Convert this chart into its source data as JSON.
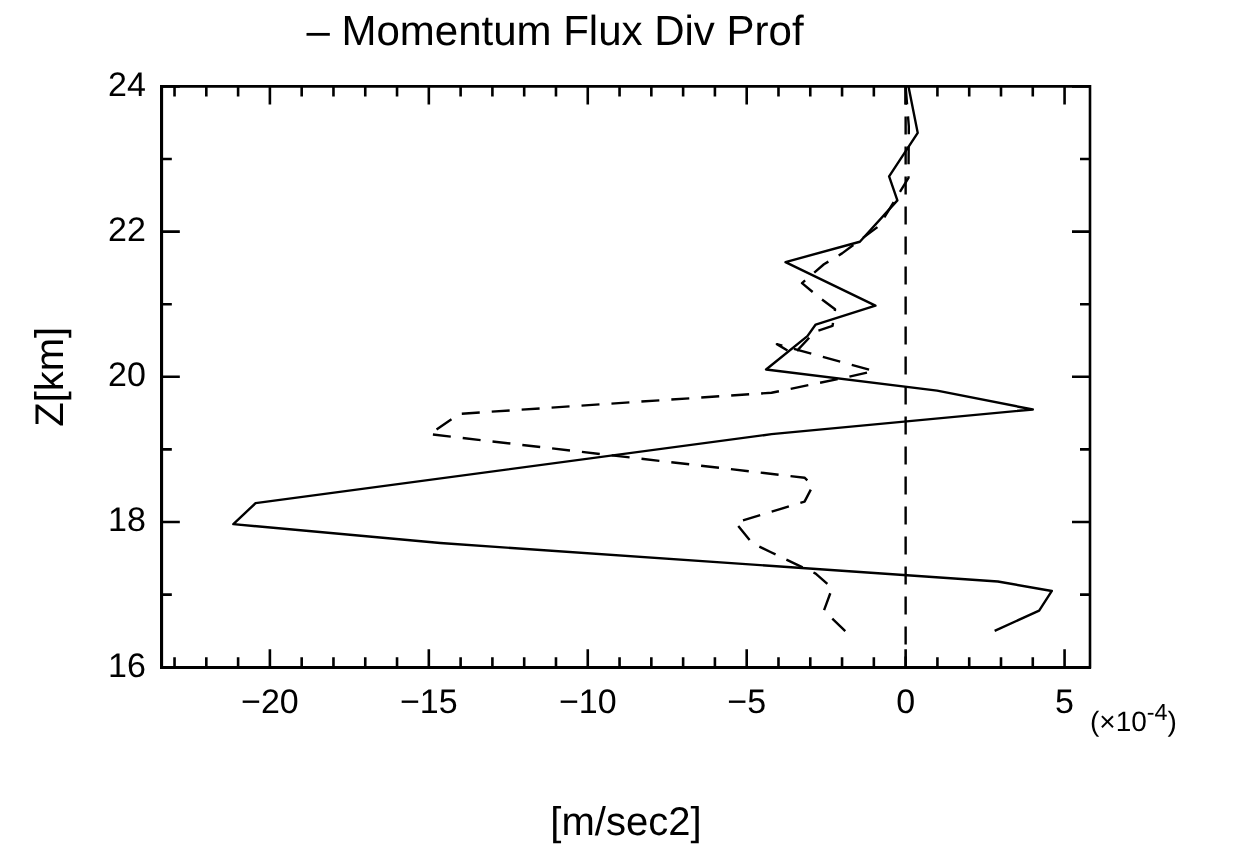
{
  "chart_data": {
    "type": "line",
    "title": "– Momentum Flux Div Prof",
    "xlabel": "[m/sec2]",
    "ylabel": "Z[km]",
    "annotations": [
      "(×10$^{-4}$)"
    ],
    "xlim": [
      -23.4,
      5.8
    ],
    "xticks": [
      -20,
      -15,
      -10,
      -5,
      0,
      5,
      {
        "value": -23,
        "label": null
      },
      {
        "value": -22,
        "label": null
      },
      {
        "value": -21,
        "label": null
      },
      {
        "value": -19,
        "label": null
      },
      {
        "value": -18,
        "label": null
      },
      {
        "value": -17,
        "label": null
      },
      {
        "value": -16,
        "label": null
      },
      {
        "value": -14,
        "label": null
      },
      {
        "value": -13,
        "label": null
      },
      {
        "value": -12,
        "label": null
      },
      {
        "value": -11,
        "label": null
      },
      {
        "value": -9,
        "label": null
      },
      {
        "value": -8,
        "label": null
      },
      {
        "value": -7,
        "label": null
      },
      {
        "value": -6,
        "label": null
      },
      {
        "value": -4,
        "label": null
      },
      {
        "value": -3,
        "label": null
      },
      {
        "value": -2,
        "label": null
      },
      {
        "value": -1,
        "label": null
      },
      {
        "value": 1,
        "label": null
      },
      {
        "value": 2,
        "label": null
      },
      {
        "value": 3,
        "label": null
      },
      {
        "value": 4,
        "label": null
      }
    ],
    "ylim": [
      16,
      24
    ],
    "yticks": [
      16,
      18,
      20,
      22,
      24,
      {
        "value": 17,
        "label": null
      },
      {
        "value": 19,
        "label": null
      },
      {
        "value": 21,
        "label": null
      },
      {
        "value": 23,
        "label": null
      }
    ],
    "grid": false,
    "legend": false,
    "marker": "none",
    "ref_lines": [
      {
        "axis": "x",
        "value": 0,
        "color": "#000000",
        "line_style": "dashed"
      }
    ],
    "series": [
      {
        "color": "#000000",
        "line_style": "solid",
        "x": [
          0.09,
          0.38,
          -0.52,
          -0.26,
          -1.44,
          -3.78,
          -0.95,
          -2.83,
          -3.09,
          -4.39,
          0.99,
          4.0,
          -4.22,
          -20.45,
          -21.15,
          -14.64,
          2.9,
          4.6,
          4.2,
          2.8
        ],
        "values": [
          24.0,
          23.36,
          22.76,
          22.43,
          21.86,
          21.58,
          20.98,
          20.72,
          20.56,
          20.1,
          19.81,
          19.55,
          19.21,
          18.26,
          17.97,
          17.71,
          17.18,
          17.05,
          16.78,
          16.5
        ]
      },
      {
        "color": "#000000",
        "line_style": "dashed",
        "x": [
          0.0,
          0.1,
          0.09,
          -0.83,
          -2.0,
          -2.57,
          -3.26,
          -2.74,
          -2.22,
          -2.3,
          -2.86,
          -3.52,
          -4.05,
          -1.0,
          -1.79,
          -4.22,
          -14.03,
          -14.98,
          -3.18,
          -2.92,
          -3.18,
          -5.35,
          -4.83,
          -4.22,
          -2.83,
          -2.31,
          -2.57,
          -1.88
        ],
        "values": [
          24.0,
          23.45,
          22.74,
          22.08,
          21.7,
          21.55,
          21.29,
          21.1,
          20.93,
          20.7,
          20.62,
          20.31,
          20.45,
          20.08,
          20.0,
          19.78,
          19.49,
          19.21,
          18.61,
          18.5,
          18.28,
          17.99,
          17.71,
          17.58,
          17.29,
          17.09,
          16.78,
          16.49
        ]
      }
    ]
  }
}
